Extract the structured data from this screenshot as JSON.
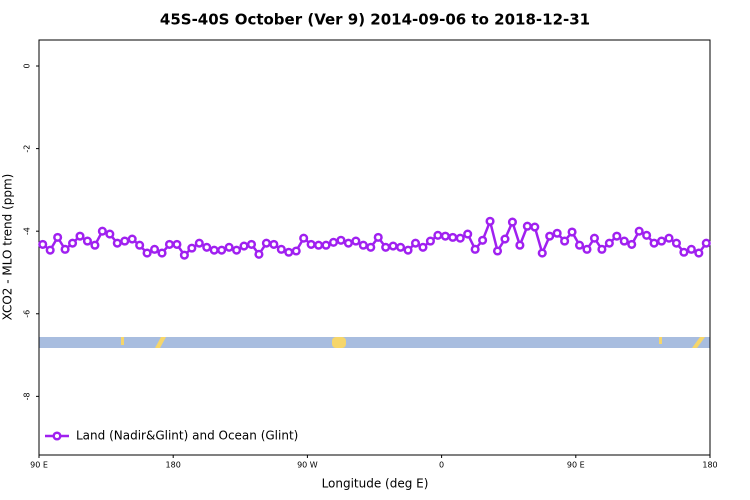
{
  "chart_data": {
    "type": "line",
    "title": "45S-40S October (Ver 9)   2014-09-06 to 2018-12-31",
    "x_label": "Longitude (deg E)",
    "y_label": "XCO2 - MLO trend (ppm)",
    "x": [
      92.5,
      97.5,
      102.5,
      107.5,
      112.5,
      117.5,
      122.5,
      127.5,
      132.5,
      137.5,
      142.5,
      147.5,
      152.5,
      157.5,
      162.5,
      167.5,
      172.5,
      177.5,
      182.5,
      187.5,
      192.5,
      197.5,
      202.5,
      207.5,
      212.5,
      217.5,
      222.5,
      227.5,
      232.5,
      237.5,
      242.5,
      247.5,
      252.5,
      257.5,
      262.5,
      267.5,
      272.5,
      277.5,
      282.5,
      287.5,
      292.5,
      297.5,
      302.5,
      307.5,
      312.5,
      317.5,
      322.5,
      327.5,
      332.5,
      337.5,
      342.5,
      347.5,
      352.5,
      357.5,
      362.5,
      367.5,
      372.5,
      377.5,
      382.5,
      387.5,
      392.5,
      397.5,
      402.5,
      407.5,
      412.5,
      417.5,
      422.5,
      427.5,
      432.5,
      437.5,
      442.5,
      447.5,
      452.5,
      457.5,
      462.5,
      467.5,
      472.5,
      477.5,
      482.5,
      487.5,
      492.5,
      497.5,
      502.5,
      507.5,
      512.5,
      517.5,
      522.5,
      527.5,
      532.5,
      537.5
    ],
    "series": [
      {
        "name": "Land (Nadir&Glint) and Ocean (Glint)",
        "color": "#a020f0",
        "values": [
          -4.32,
          -4.46,
          -4.15,
          -4.44,
          -4.29,
          -4.12,
          -4.24,
          -4.34,
          -4.0,
          -4.07,
          -4.29,
          -4.24,
          -4.19,
          -4.34,
          -4.53,
          -4.44,
          -4.53,
          -4.32,
          -4.32,
          -4.58,
          -4.41,
          -4.29,
          -4.39,
          -4.46,
          -4.46,
          -4.39,
          -4.46,
          -4.36,
          -4.32,
          -4.56,
          -4.29,
          -4.32,
          -4.44,
          -4.51,
          -4.48,
          -4.17,
          -4.32,
          -4.34,
          -4.34,
          -4.27,
          -4.22,
          -4.29,
          -4.24,
          -4.34,
          -4.39,
          -4.15,
          -4.39,
          -4.36,
          -4.39,
          -4.46,
          -4.29,
          -4.39,
          -4.24,
          -4.1,
          -4.12,
          -4.15,
          -4.17,
          -4.07,
          -4.44,
          -4.22,
          -3.76,
          -4.48,
          -4.19,
          -3.78,
          -4.34,
          -3.88,
          -3.9,
          -4.53,
          -4.12,
          -4.05,
          -4.24,
          -4.02,
          -4.34,
          -4.44,
          -4.17,
          -4.44,
          -4.29,
          -4.12,
          -4.24,
          -4.32,
          -4.0,
          -4.1,
          -4.29,
          -4.24,
          -4.17,
          -4.29,
          -4.51,
          -4.44,
          -4.53,
          -4.29
        ]
      }
    ],
    "xlim": [
      90,
      540
    ],
    "xticks": [
      {
        "value": 90,
        "label": "90 E"
      },
      180,
      {
        "value": 270,
        "label": "90 W"
      },
      {
        "value": 360,
        "label": "0"
      },
      {
        "value": 450,
        "label": "90 E"
      },
      {
        "value": 540,
        "label": "180"
      }
    ],
    "ylim": [
      -9.42,
      0.63
    ],
    "yticks": [
      0,
      -2,
      -4,
      -6,
      -8
    ],
    "legend": "bottom-left"
  }
}
